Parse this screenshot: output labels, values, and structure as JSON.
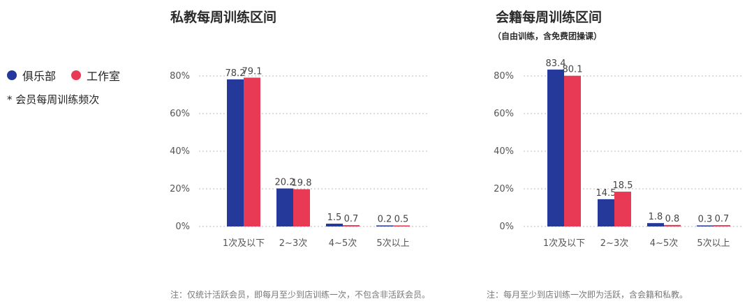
{
  "legend": {
    "items": [
      {
        "label": "俱乐部",
        "color": "#25399a"
      },
      {
        "label": "工作室",
        "color": "#e83a55"
      }
    ],
    "note": "* 会员每周训练频次"
  },
  "chart_data": [
    {
      "type": "bar",
      "title": "私教每周训练区间",
      "subtitle": "",
      "categories": [
        "1次及以下",
        "2~3次",
        "4~5次",
        "5次以上"
      ],
      "series": [
        {
          "name": "俱乐部",
          "values": [
            78.2,
            20.2,
            1.5,
            0.2
          ],
          "labels": [
            "78.2",
            "20.2",
            "1.5",
            "0.2"
          ]
        },
        {
          "name": "工作室",
          "values": [
            79.1,
            19.8,
            0.7,
            0.5
          ],
          "labels": [
            "79.1",
            "19.8",
            "0.7",
            "0.5"
          ]
        }
      ],
      "ylim": [
        0,
        80
      ],
      "yticks": [
        "0%",
        "20%",
        "40%",
        "60%",
        "80%"
      ],
      "grid": true,
      "footnote": "注：仅统计活跃会员，即每月至少到店训练一次，不包含非活跃会员。"
    },
    {
      "type": "bar",
      "title": "会籍每周训练区间",
      "subtitle": "（自由训练，含免费团操课）",
      "categories": [
        "1次及以下",
        "2~3次",
        "4~5次",
        "5次以上"
      ],
      "series": [
        {
          "name": "俱乐部",
          "values": [
            83.4,
            14.5,
            1.8,
            0.3
          ],
          "labels": [
            "83.4",
            "14.5",
            "1.8",
            "0.3"
          ]
        },
        {
          "name": "工作室",
          "values": [
            80.1,
            18.5,
            0.8,
            0.7
          ],
          "labels": [
            "80.1",
            "18.5",
            "0.8",
            "0.7"
          ]
        }
      ],
      "ylim": [
        0,
        80
      ],
      "yticks": [
        "0%",
        "20%",
        "40%",
        "60%",
        "80%"
      ],
      "grid": true,
      "footnote": "注：每月至少到店训练一次即为活跃，含会籍和私教。"
    }
  ]
}
